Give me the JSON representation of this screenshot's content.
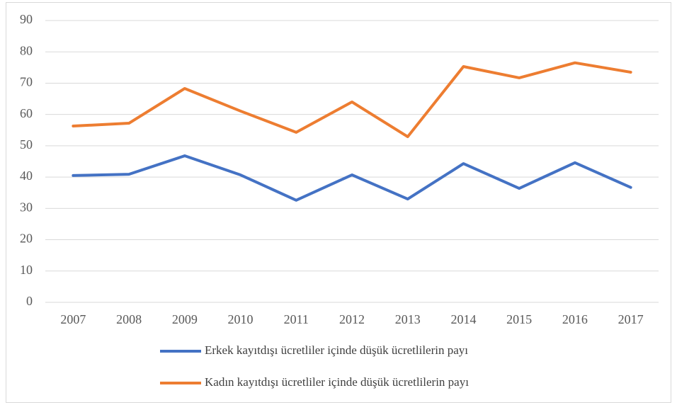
{
  "chart_data": {
    "type": "line",
    "categories": [
      "2007",
      "2008",
      "2009",
      "2010",
      "2011",
      "2012",
      "2013",
      "2014",
      "2015",
      "2016",
      "2017"
    ],
    "series": [
      {
        "name": "Erkek kayıtdışı ücretliler içinde düşük ücretlilerin payı",
        "color": "#4472c4",
        "values": [
          40.5,
          40.9,
          46.8,
          40.7,
          32.6,
          40.7,
          33.0,
          44.3,
          36.4,
          44.6,
          36.7
        ]
      },
      {
        "name": "Kadın kayıtdışı ücretliler içinde düşük ücretlilerin payı",
        "color": "#ed7d31",
        "values": [
          56.3,
          57.2,
          68.3,
          61.1,
          54.3,
          64.0,
          52.9,
          75.3,
          71.7,
          76.5,
          73.5
        ]
      }
    ],
    "ylim": [
      0,
      90
    ],
    "yticks": [
      0,
      10,
      20,
      30,
      40,
      50,
      60,
      70,
      80,
      90
    ],
    "grid": true,
    "legend": "bottom"
  }
}
